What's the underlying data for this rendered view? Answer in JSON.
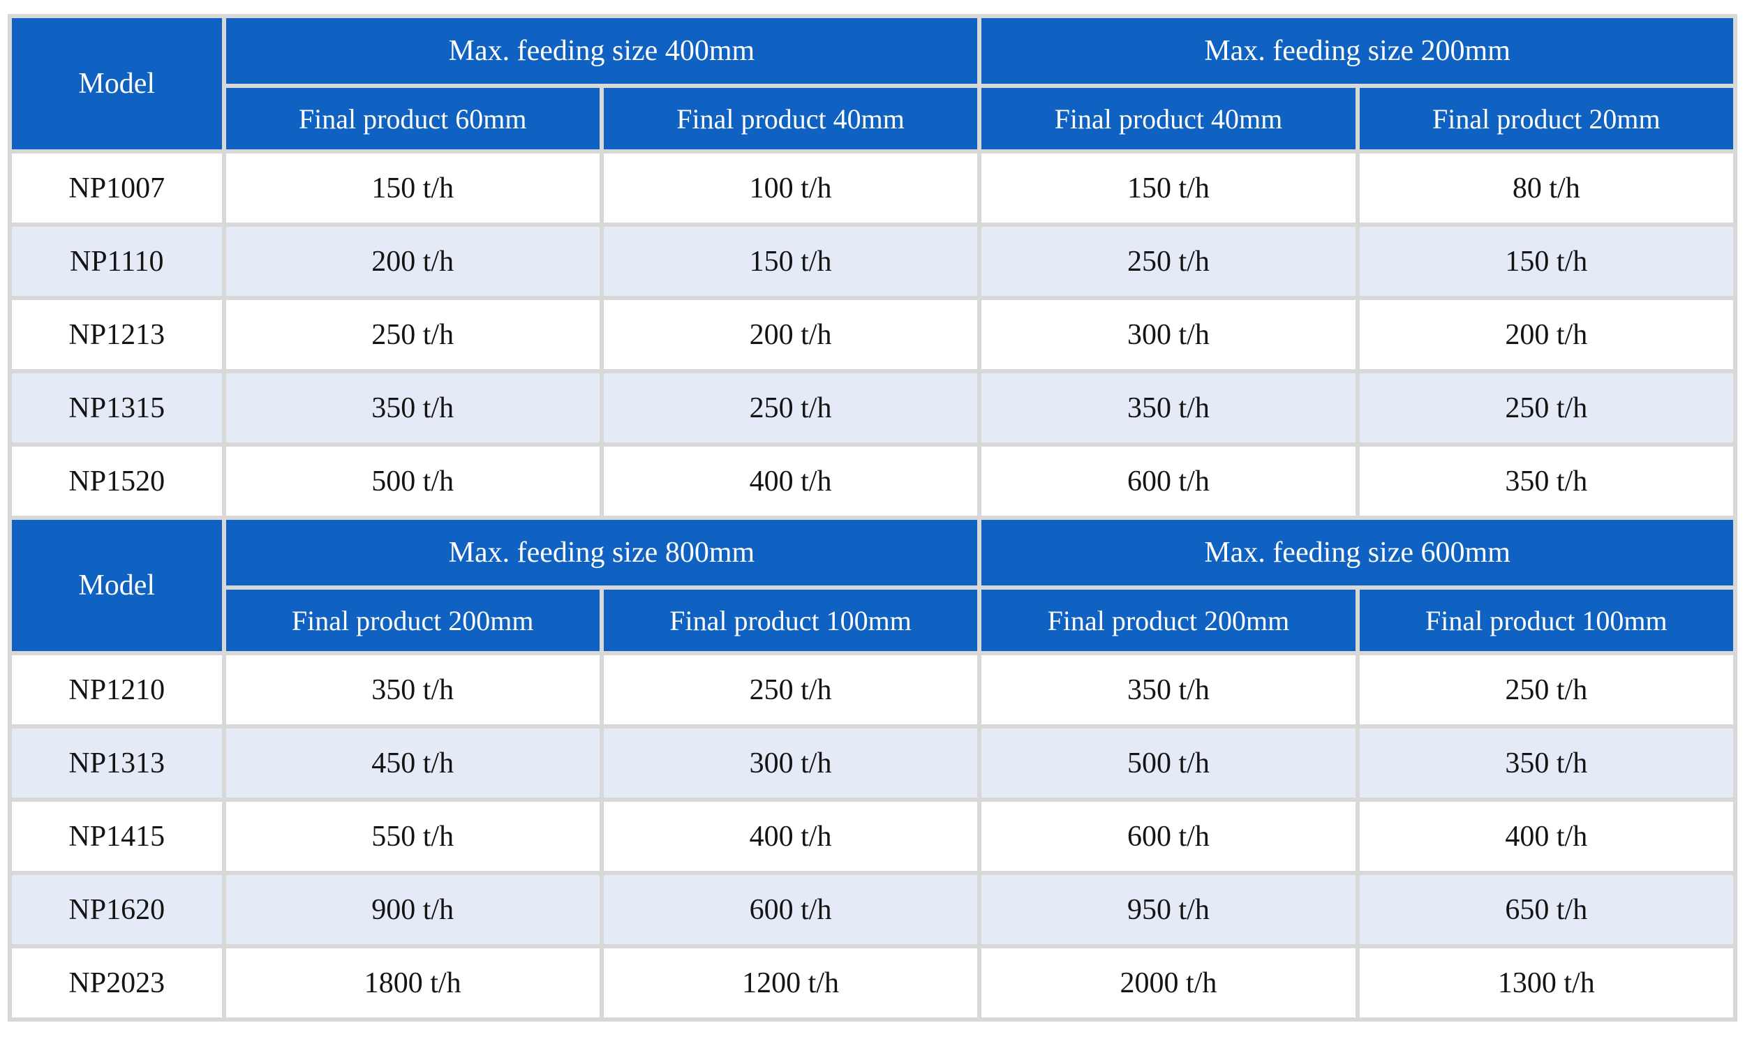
{
  "chart_data": [
    {
      "type": "table",
      "model_header": "Model",
      "groups": [
        {
          "label": "Max. feeding size 400mm",
          "subheaders": [
            "Final product 60mm",
            "Final product 40mm"
          ]
        },
        {
          "label": "Max. feeding size 200mm",
          "subheaders": [
            "Final product 40mm",
            "Final product 20mm"
          ]
        }
      ],
      "rows": [
        {
          "model": "NP1007",
          "values": [
            "150 t/h",
            "100 t/h",
            "150 t/h",
            "80 t/h"
          ]
        },
        {
          "model": "NP1110",
          "values": [
            "200 t/h",
            "150 t/h",
            "250 t/h",
            "150 t/h"
          ]
        },
        {
          "model": "NP1213",
          "values": [
            "250 t/h",
            "200 t/h",
            "300 t/h",
            "200 t/h"
          ]
        },
        {
          "model": "NP1315",
          "values": [
            "350 t/h",
            "250 t/h",
            "350 t/h",
            "250 t/h"
          ]
        },
        {
          "model": "NP1520",
          "values": [
            "500 t/h",
            "400 t/h",
            "600 t/h",
            "350 t/h"
          ]
        }
      ]
    },
    {
      "type": "table",
      "model_header": "Model",
      "groups": [
        {
          "label": "Max. feeding size 800mm",
          "subheaders": [
            "Final product 200mm",
            "Final product 100mm"
          ]
        },
        {
          "label": "Max. feeding size 600mm",
          "subheaders": [
            "Final product 200mm",
            "Final product 100mm"
          ]
        }
      ],
      "rows": [
        {
          "model": "NP1210",
          "values": [
            "350 t/h",
            "250 t/h",
            "350 t/h",
            "250 t/h"
          ]
        },
        {
          "model": "NP1313",
          "values": [
            "450 t/h",
            "300 t/h",
            "500 t/h",
            "350 t/h"
          ]
        },
        {
          "model": "NP1415",
          "values": [
            "550 t/h",
            "400 t/h",
            "600 t/h",
            "400 t/h"
          ]
        },
        {
          "model": "NP1620",
          "values": [
            "900 t/h",
            "600 t/h",
            "950 t/h",
            "650 t/h"
          ]
        },
        {
          "model": "NP2023",
          "values": [
            "1800 t/h",
            "1200 t/h",
            "2000 t/h",
            "1300 t/h"
          ]
        }
      ]
    }
  ],
  "colors": {
    "header_blue": "#1062C2",
    "row_alt_blue": "#E4EBF7",
    "grid_gray": "#D8D8D8",
    "text_dark": "#141414",
    "header_text": "#FFFFFF",
    "page_bg": "#FFFFFF"
  }
}
